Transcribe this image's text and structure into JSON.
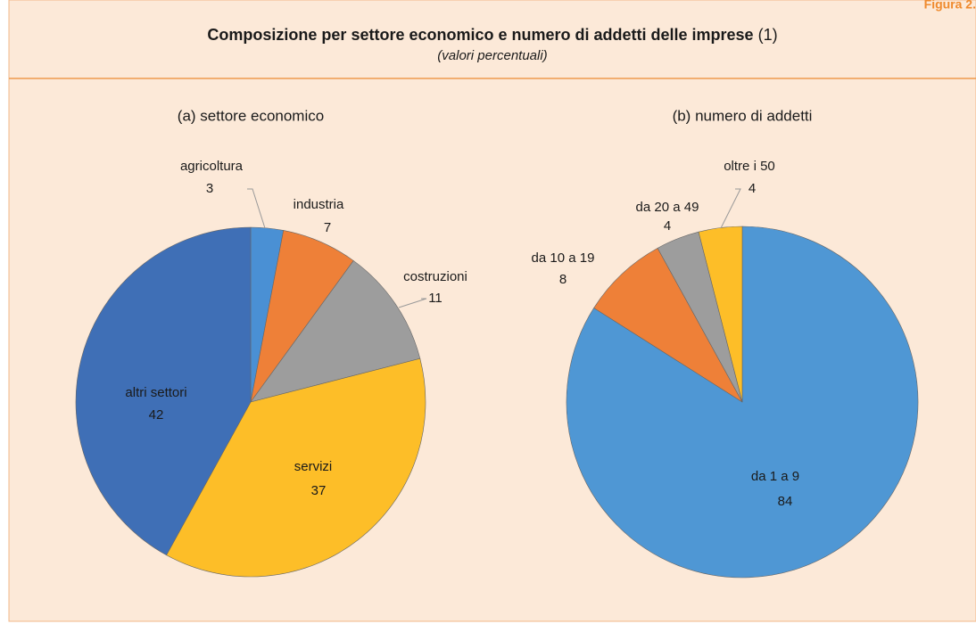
{
  "figure_label": "Figura 2.",
  "title": "Composizione per settore economico e numero di addetti delle imprese",
  "title_note": "(1)",
  "subtitle": "(valori percentuali)",
  "chart_data": [
    {
      "type": "pie",
      "title": "(a) settore economico",
      "categories": [
        "agricoltura",
        "industria",
        "costruzioni",
        "servizi",
        "altri settori"
      ],
      "values": [
        3,
        7,
        11,
        37,
        42
      ],
      "colors": [
        "#4a90d4",
        "#ee8038",
        "#9d9d9d",
        "#fdbe28",
        "#3f6fb6"
      ]
    },
    {
      "type": "pie",
      "title": "(b) numero di addetti",
      "categories": [
        "da 1 a 9",
        "da 10 a 19",
        "da 20 a 49",
        "oltre i 50"
      ],
      "values": [
        84,
        8,
        4,
        4
      ],
      "colors": [
        "#4f97d4",
        "#ee8038",
        "#9d9d9d",
        "#fdbe28"
      ]
    }
  ]
}
